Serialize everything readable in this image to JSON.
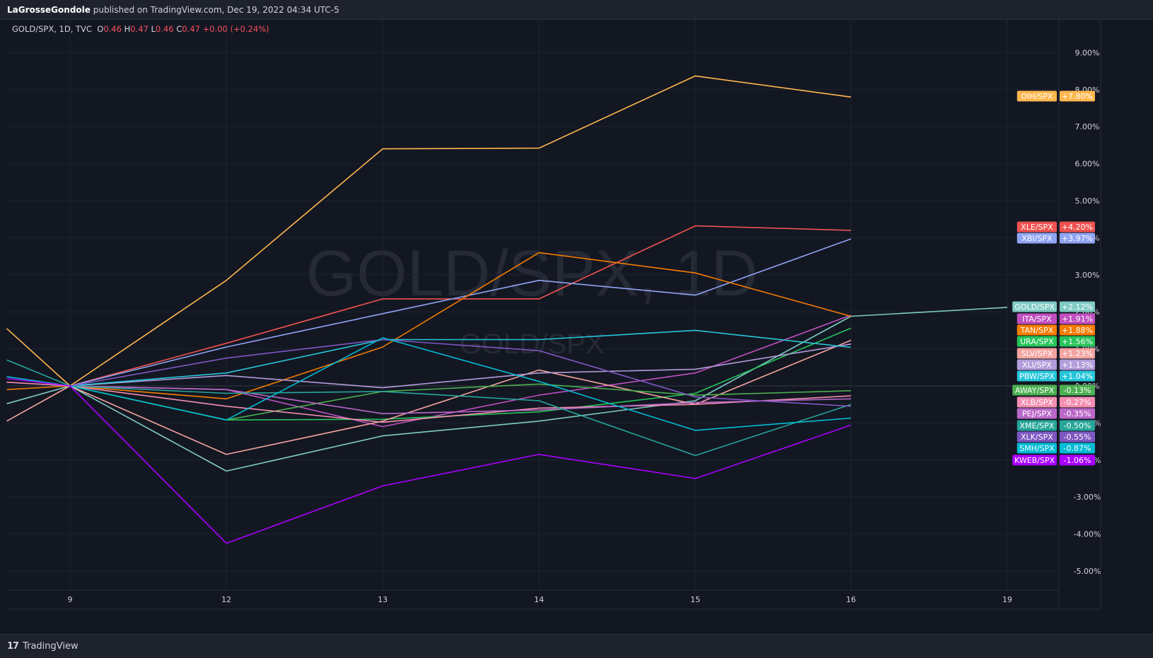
{
  "header": {
    "author": "LaGrosseGondole",
    "published_text": "published on TradingView.com, Dec 19, 2022 04:34 UTC-5"
  },
  "legend": {
    "symbol": "GOLD/SPX, 1D, TVC",
    "o_label": "O",
    "o_value": "0.46",
    "h_label": "H",
    "h_value": "0.47",
    "l_label": "L",
    "l_value": "0.46",
    "c_label": "C",
    "c_value": "0.47",
    "change": "+0.00 (+0.24%)"
  },
  "watermark": {
    "main": "GOLD/SPX, 1D",
    "sub": "GOLD/SPX"
  },
  "footer": {
    "brand": "TradingView",
    "logo_icon": "tradingview-logo-icon"
  },
  "colors": {
    "background": "#131722",
    "grid": "#1f2330",
    "axis_text": "#d1d4dc",
    "zero_line": "#363a45"
  },
  "chart_data": {
    "type": "line",
    "x": [
      "8",
      "9",
      "12",
      "13",
      "14",
      "15",
      "16",
      "19"
    ],
    "x_tick_labels": [
      "9",
      "12",
      "13",
      "14",
      "15",
      "16",
      "19"
    ],
    "y_ticks": [
      "9.00%",
      "8.00%",
      "7.00%",
      "6.00%",
      "5.00%",
      "4.00%",
      "3.00%",
      "2.00%",
      "1.00%",
      "0.00%",
      "-1.00%",
      "-2.00%",
      "-3.00%",
      "-4.00%",
      "-5.00%"
    ],
    "ylim": [
      -5.5,
      10.0
    ],
    "ylabel_unit": "%",
    "grid": true,
    "legend_position": "right",
    "series": [
      {
        "name": "OIH/SPX",
        "color": "#ffb74d",
        "label": "+7.80%",
        "values": [
          1.55,
          0.0,
          2.85,
          6.4,
          6.42,
          8.37,
          7.8,
          null
        ]
      },
      {
        "name": "XLE/SPX",
        "color": "#ef5350",
        "label": "+4.20%",
        "values": [
          null,
          0.0,
          1.15,
          2.35,
          2.35,
          4.32,
          4.2,
          null
        ]
      },
      {
        "name": "XBI/SPX",
        "color": "#90a4f4",
        "label": "+3.97%",
        "values": [
          null,
          0.0,
          1.05,
          1.95,
          2.85,
          2.45,
          3.97,
          null
        ]
      },
      {
        "name": "GOLD/SPX",
        "color": "#80cbc4",
        "label": "+2.12%",
        "values": [
          -0.48,
          0.0,
          -2.3,
          -1.35,
          -0.95,
          -0.4,
          1.88,
          2.12
        ]
      },
      {
        "name": "ITA/SPX",
        "color": "#c050c0",
        "label": "+1.91%",
        "values": [
          null,
          0.0,
          -0.1,
          -1.1,
          -0.25,
          0.35,
          1.91,
          null
        ]
      },
      {
        "name": "TAN/SPX",
        "color": "#f57c00",
        "label": "+1.88%",
        "values": [
          -0.1,
          0.0,
          -0.35,
          1.05,
          3.6,
          3.05,
          1.88,
          null
        ]
      },
      {
        "name": "URA/SPX",
        "color": "#26c45a",
        "label": "+1.56%",
        "values": [
          null,
          0.0,
          -0.92,
          -0.9,
          -0.7,
          -0.2,
          1.56,
          null
        ]
      },
      {
        "name": "SLV/SPX",
        "color": "#f4a4a0",
        "label": "+1.23%",
        "values": [
          -0.95,
          0.0,
          -1.85,
          -0.95,
          0.43,
          -0.5,
          1.23,
          null
        ]
      },
      {
        "name": "XLI/SPX",
        "color": "#b39ddb",
        "label": "+1.13%",
        "values": [
          null,
          0.0,
          0.28,
          -0.05,
          0.35,
          0.45,
          1.13,
          null
        ]
      },
      {
        "name": "PBW/SPX",
        "color": "#26c6da",
        "label": "+1.04%",
        "values": [
          null,
          0.0,
          0.35,
          1.25,
          1.25,
          1.5,
          1.04,
          null
        ]
      },
      {
        "name": "AWAY/SPX",
        "color": "#4caf50",
        "label": "-0.13%",
        "values": [
          null,
          0.0,
          -0.92,
          -0.15,
          0.05,
          -0.25,
          -0.13,
          null
        ]
      },
      {
        "name": "XLB/SPX",
        "color": "#f48fb1",
        "label": "-0.27%",
        "values": [
          0.1,
          0.0,
          -0.55,
          -0.98,
          -0.6,
          -0.5,
          -0.27,
          null
        ]
      },
      {
        "name": "PEJ/SPX",
        "color": "#ba68c8",
        "label": "-0.35%",
        "values": [
          null,
          0.0,
          -0.1,
          -0.75,
          -0.65,
          -0.45,
          -0.35,
          null
        ]
      },
      {
        "name": "XME/SPX",
        "color": "#26a69a",
        "label": "-0.50%",
        "values": [
          0.7,
          0.0,
          -0.2,
          -0.15,
          -0.4,
          -1.88,
          -0.5,
          null
        ]
      },
      {
        "name": "XLK/SPX",
        "color": "#7e57c2",
        "label": "-0.55%",
        "values": [
          null,
          0.0,
          0.75,
          1.25,
          0.95,
          -0.3,
          -0.55,
          null
        ]
      },
      {
        "name": "SMH/SPX",
        "color": "#00bcd4",
        "label": "-0.87%",
        "values": [
          0.25,
          0.0,
          -0.92,
          1.3,
          0.12,
          -1.2,
          -0.87,
          null
        ]
      },
      {
        "name": "KWEB/SPX",
        "color": "#aa00ff",
        "label": "-1.06%",
        "values": [
          0.2,
          0.0,
          -4.25,
          -2.7,
          -1.85,
          -2.5,
          -1.06,
          null
        ]
      }
    ]
  }
}
